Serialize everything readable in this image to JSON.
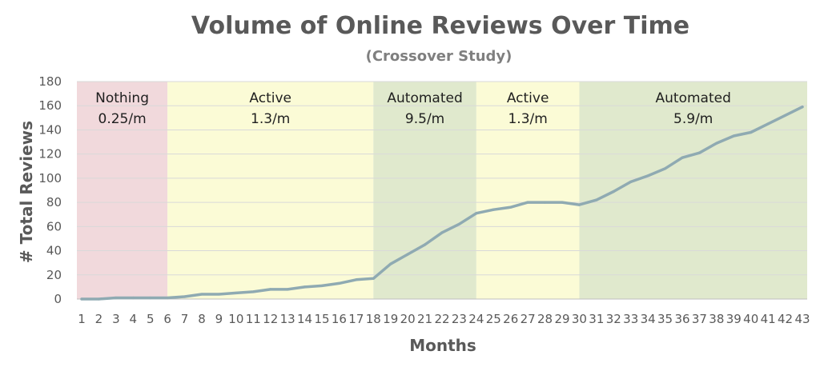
{
  "chart_data": {
    "type": "line",
    "title": "Volume of Online Reviews Over Time",
    "subtitle": "(Crossover Study)",
    "xlabel": "Months",
    "ylabel": "# Total Reviews",
    "ylim": [
      0,
      180
    ],
    "yticks": [
      0,
      20,
      40,
      60,
      80,
      100,
      120,
      140,
      160,
      180
    ],
    "x": [
      1,
      2,
      3,
      4,
      5,
      6,
      7,
      8,
      9,
      10,
      11,
      12,
      13,
      14,
      15,
      16,
      17,
      18,
      19,
      20,
      21,
      22,
      23,
      24,
      25,
      26,
      27,
      28,
      29,
      30,
      31,
      32,
      33,
      34,
      35,
      36,
      37,
      38,
      39,
      40,
      41,
      42,
      43
    ],
    "grid": true,
    "series": [
      {
        "values": [
          0,
          0,
          1,
          1,
          1,
          1,
          2,
          4,
          4,
          5,
          6,
          8,
          8,
          10,
          11,
          13,
          16,
          17,
          29,
          37,
          45,
          55,
          62,
          71,
          74,
          76,
          80,
          80,
          80,
          78,
          82,
          89,
          97,
          102,
          108,
          117,
          121,
          129,
          135,
          138,
          145,
          152,
          159
        ],
        "color": "#8faab2"
      }
    ],
    "phases": [
      {
        "name": "Nothing",
        "rate": "0.25/m",
        "start": 1,
        "end": 6,
        "color": "#f1d9dc"
      },
      {
        "name": "Active",
        "rate": "1.3/m",
        "start": 6,
        "end": 18,
        "color": "#fbfbd6"
      },
      {
        "name": "Automated",
        "rate": "9.5/m",
        "start": 18,
        "end": 24,
        "color": "#e0e9cd"
      },
      {
        "name": "Active",
        "rate": "1.3/m",
        "start": 24,
        "end": 30,
        "color": "#fbfbd6"
      },
      {
        "name": "Automated",
        "rate": "5.9/m",
        "start": 30,
        "end": 43,
        "color": "#e0e9cd"
      }
    ]
  }
}
